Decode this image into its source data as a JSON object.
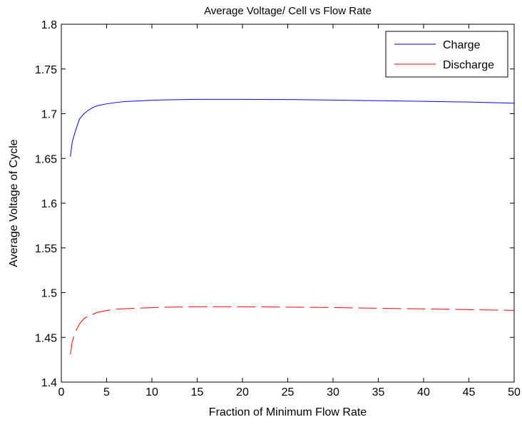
{
  "chart_data": {
    "type": "line",
    "title": "Average Voltage/ Cell vs Flow Rate",
    "xlabel": "Fraction of Minimum Flow Rate",
    "ylabel": "Average Voltage of Cycle",
    "xlim": [
      0,
      50
    ],
    "ylim": [
      1.4,
      1.8
    ],
    "xticks": [
      0,
      5,
      10,
      15,
      20,
      25,
      30,
      35,
      40,
      45,
      50
    ],
    "yticks": [
      1.4,
      1.45,
      1.5,
      1.55,
      1.6,
      1.65,
      1.7,
      1.75,
      1.8
    ],
    "xtick_labels": [
      "0",
      "5",
      "10",
      "15",
      "20",
      "25",
      "30",
      "35",
      "40",
      "45",
      "50"
    ],
    "ytick_labels": [
      "1.4",
      "1.45",
      "1.5",
      "1.55",
      "1.6",
      "1.65",
      "1.7",
      "1.75",
      "1.8"
    ],
    "grid": false,
    "legend_position": "top-right",
    "series": [
      {
        "name": "Charge",
        "color": "#0000ff",
        "dash": "solid",
        "x": [
          1,
          1.2,
          1.5,
          1.8,
          2,
          2.5,
          3,
          3.5,
          4,
          5,
          6,
          7,
          8,
          10,
          12,
          15,
          20,
          25,
          30,
          35,
          40,
          45,
          50
        ],
        "y": [
          1.652,
          1.668,
          1.679,
          1.688,
          1.694,
          1.7,
          1.704,
          1.707,
          1.709,
          1.711,
          1.7125,
          1.7135,
          1.714,
          1.715,
          1.7155,
          1.716,
          1.716,
          1.7158,
          1.7152,
          1.7145,
          1.7138,
          1.713,
          1.7118
        ]
      },
      {
        "name": "Discharge",
        "color": "#ff0000",
        "dash": "dashed",
        "x": [
          1,
          1.2,
          1.5,
          1.8,
          2,
          2.5,
          3,
          3.5,
          4,
          5,
          6,
          7,
          8,
          10,
          12,
          15,
          20,
          25,
          30,
          35,
          40,
          45,
          50
        ],
        "y": [
          1.431,
          1.445,
          1.455,
          1.461,
          1.465,
          1.471,
          1.474,
          1.476,
          1.478,
          1.48,
          1.4815,
          1.482,
          1.4825,
          1.4832,
          1.4838,
          1.4842,
          1.4842,
          1.4838,
          1.4833,
          1.4825,
          1.4818,
          1.481,
          1.4802
        ]
      }
    ]
  }
}
